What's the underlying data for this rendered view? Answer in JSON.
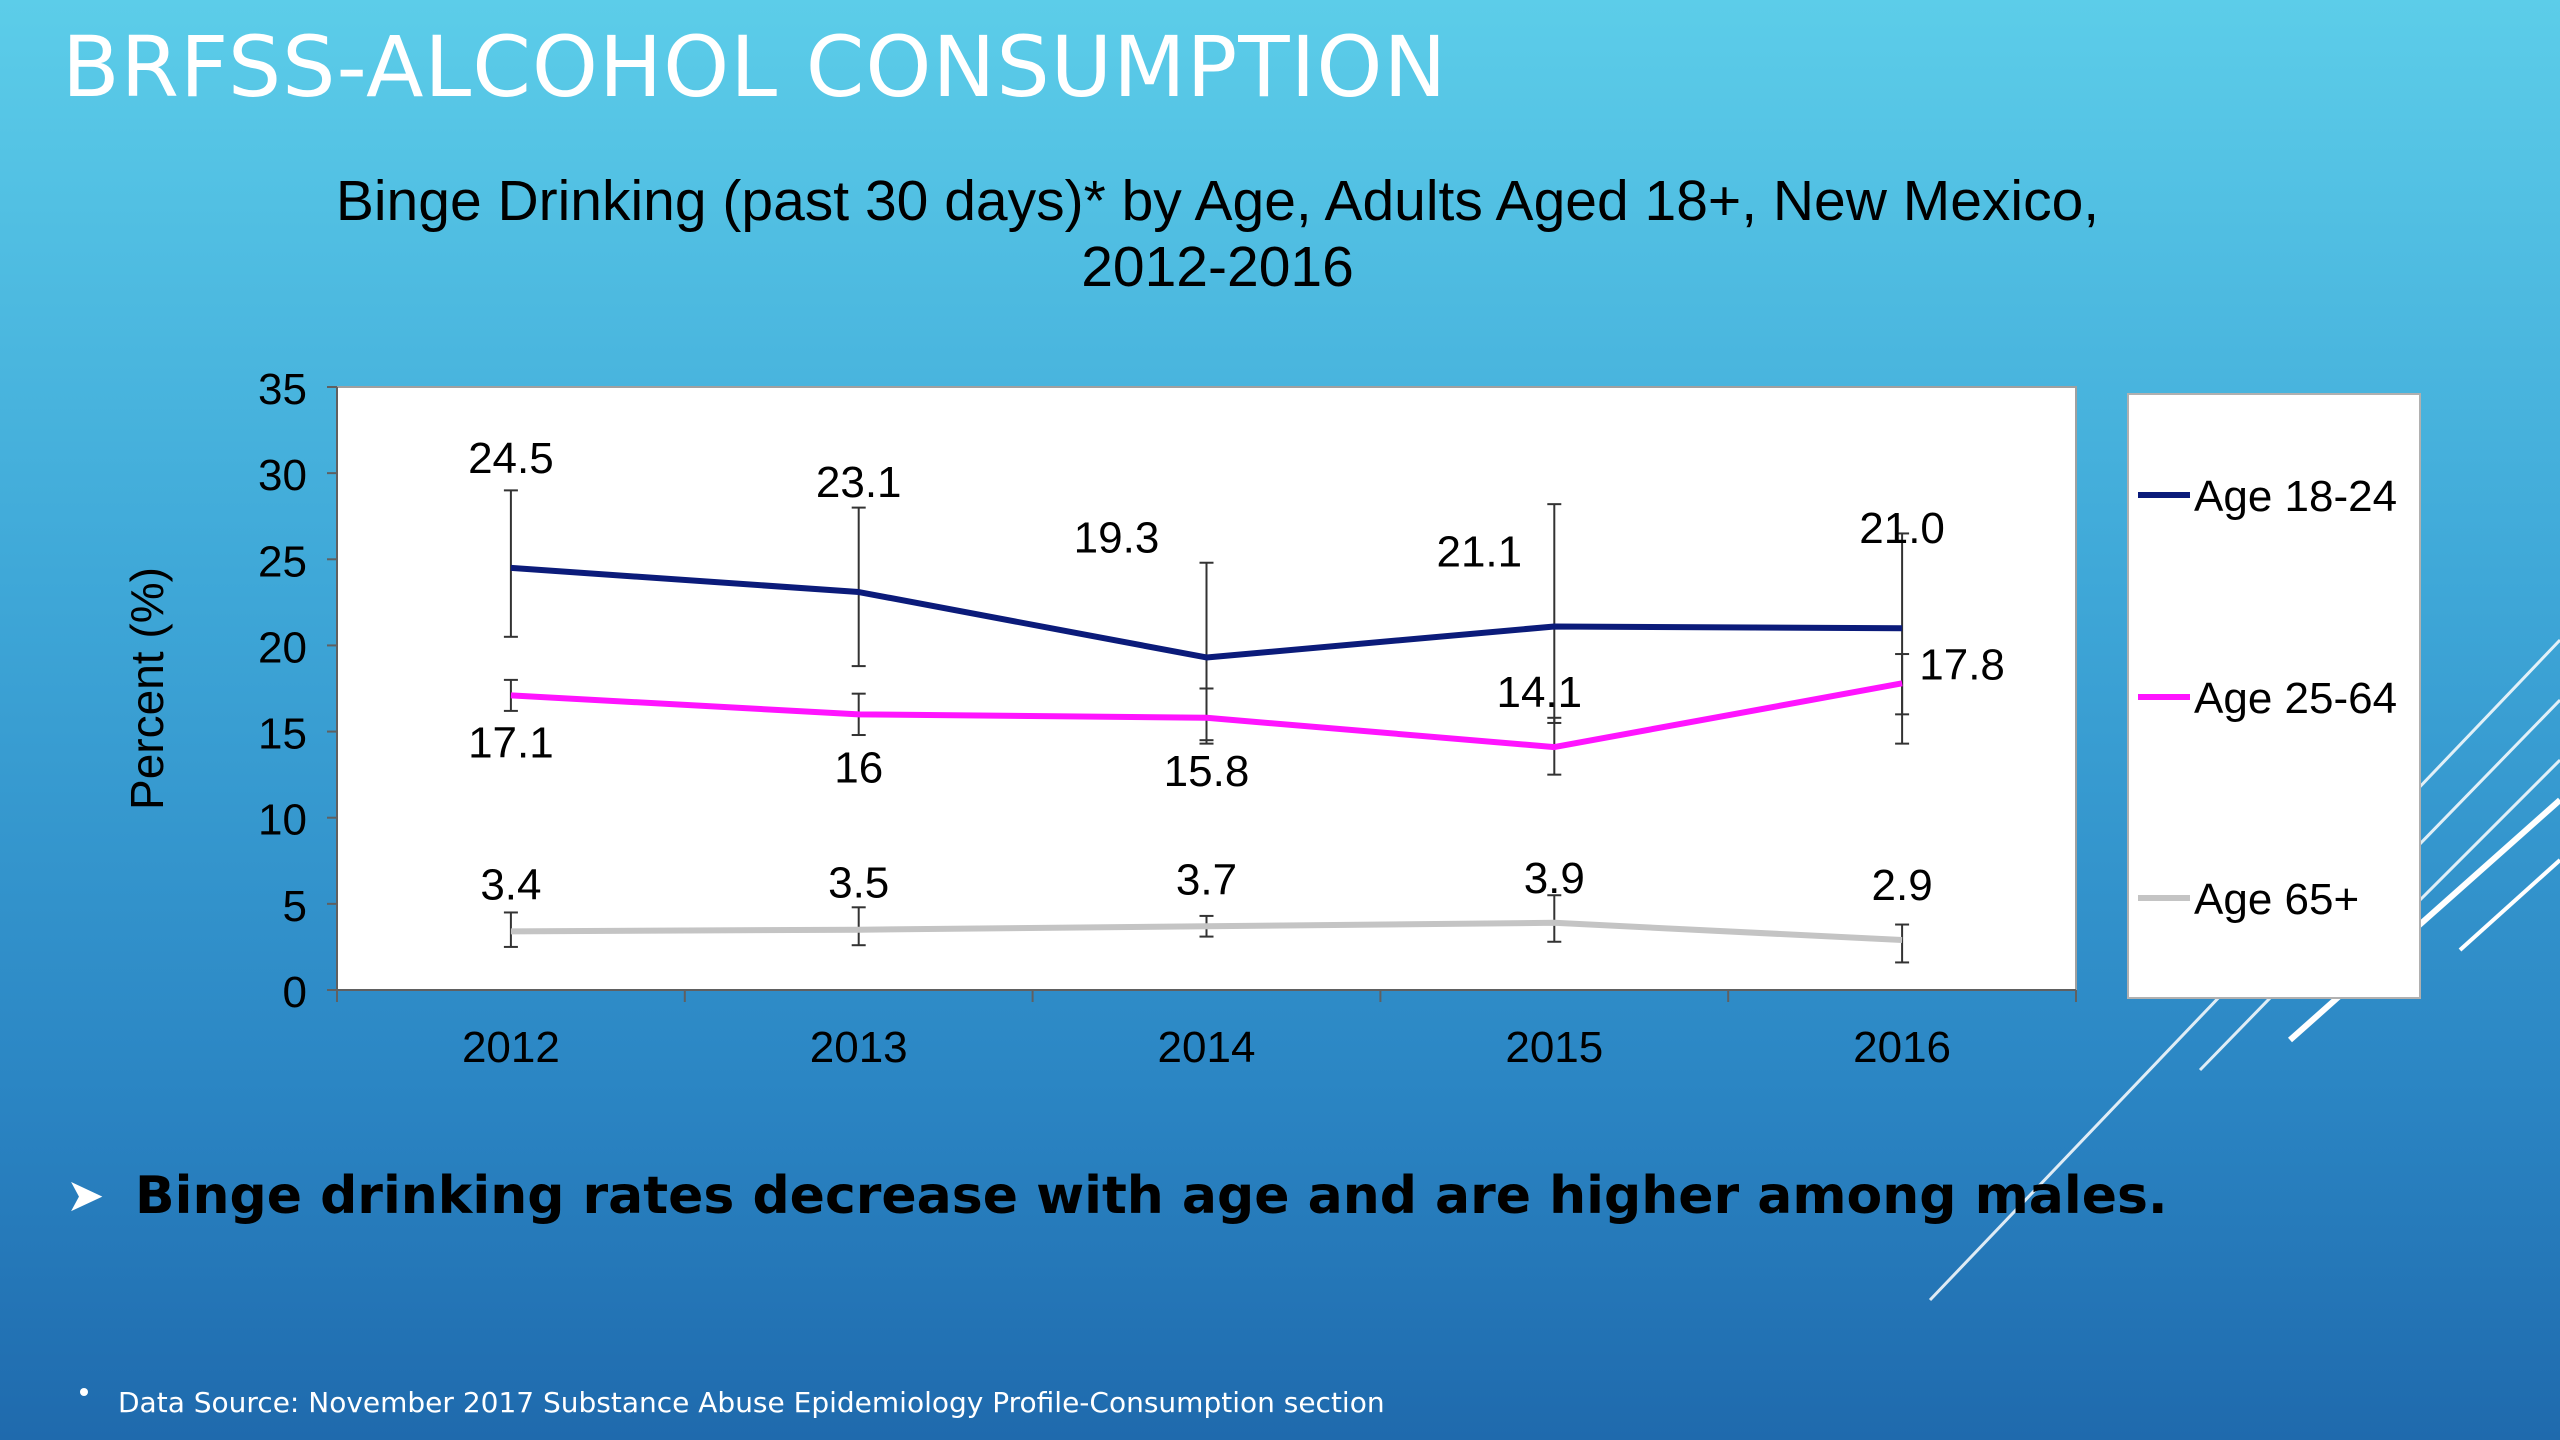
{
  "slide": {
    "title": "BRFSS-ALCOHOL CONSUMPTION",
    "bullet_text": "Binge drinking rates decrease with age and are higher among males.",
    "footnote": "Data Source: November 2017 Substance Abuse Epidemiology Profile-Consumption section"
  },
  "chart_data": {
    "type": "line",
    "title_line1": "Binge Drinking (past 30 days)* by Age, Adults Aged 18+, New Mexico,",
    "title_line2": "2012-2016",
    "ylabel": "Percent (%)",
    "xlabel": "",
    "ylim": [
      0,
      35
    ],
    "yticks": [
      "0",
      "5",
      "10",
      "15",
      "20",
      "25",
      "30",
      "35"
    ],
    "categories": [
      "2012",
      "2013",
      "2014",
      "2015",
      "2016"
    ],
    "legend_position": "right",
    "grid": false,
    "series": [
      {
        "name": "Age 18-24",
        "color": "#0b1b7a",
        "values": [
          24.5,
          23.1,
          19.3,
          21.1,
          21.0
        ],
        "labels": [
          "24.5",
          "23.1",
          "19.3",
          "21.1",
          "21.0"
        ],
        "error_low": [
          20.5,
          18.8,
          14.5,
          15.5,
          16.0
        ],
        "error_high": [
          29.0,
          28.0,
          24.8,
          28.2,
          26.5
        ]
      },
      {
        "name": "Age 25-64",
        "color": "#ff14ff",
        "values": [
          17.1,
          16.0,
          15.8,
          14.1,
          17.8
        ],
        "labels": [
          "17.1",
          "16",
          "15.8",
          "14.1",
          "17.8"
        ],
        "error_low": [
          16.2,
          14.8,
          14.3,
          12.5,
          14.3
        ],
        "error_high": [
          18.0,
          17.2,
          17.5,
          15.8,
          19.5
        ]
      },
      {
        "name": "Age 65+",
        "color": "#c4c4c4",
        "values": [
          3.4,
          3.5,
          3.7,
          3.9,
          2.9
        ],
        "labels": [
          "3.4",
          "3.5",
          "3.7",
          "3.9",
          "2.9"
        ],
        "error_low": [
          2.5,
          2.6,
          3.1,
          2.8,
          1.6
        ],
        "error_high": [
          4.5,
          4.8,
          4.3,
          5.5,
          3.8
        ]
      }
    ]
  }
}
